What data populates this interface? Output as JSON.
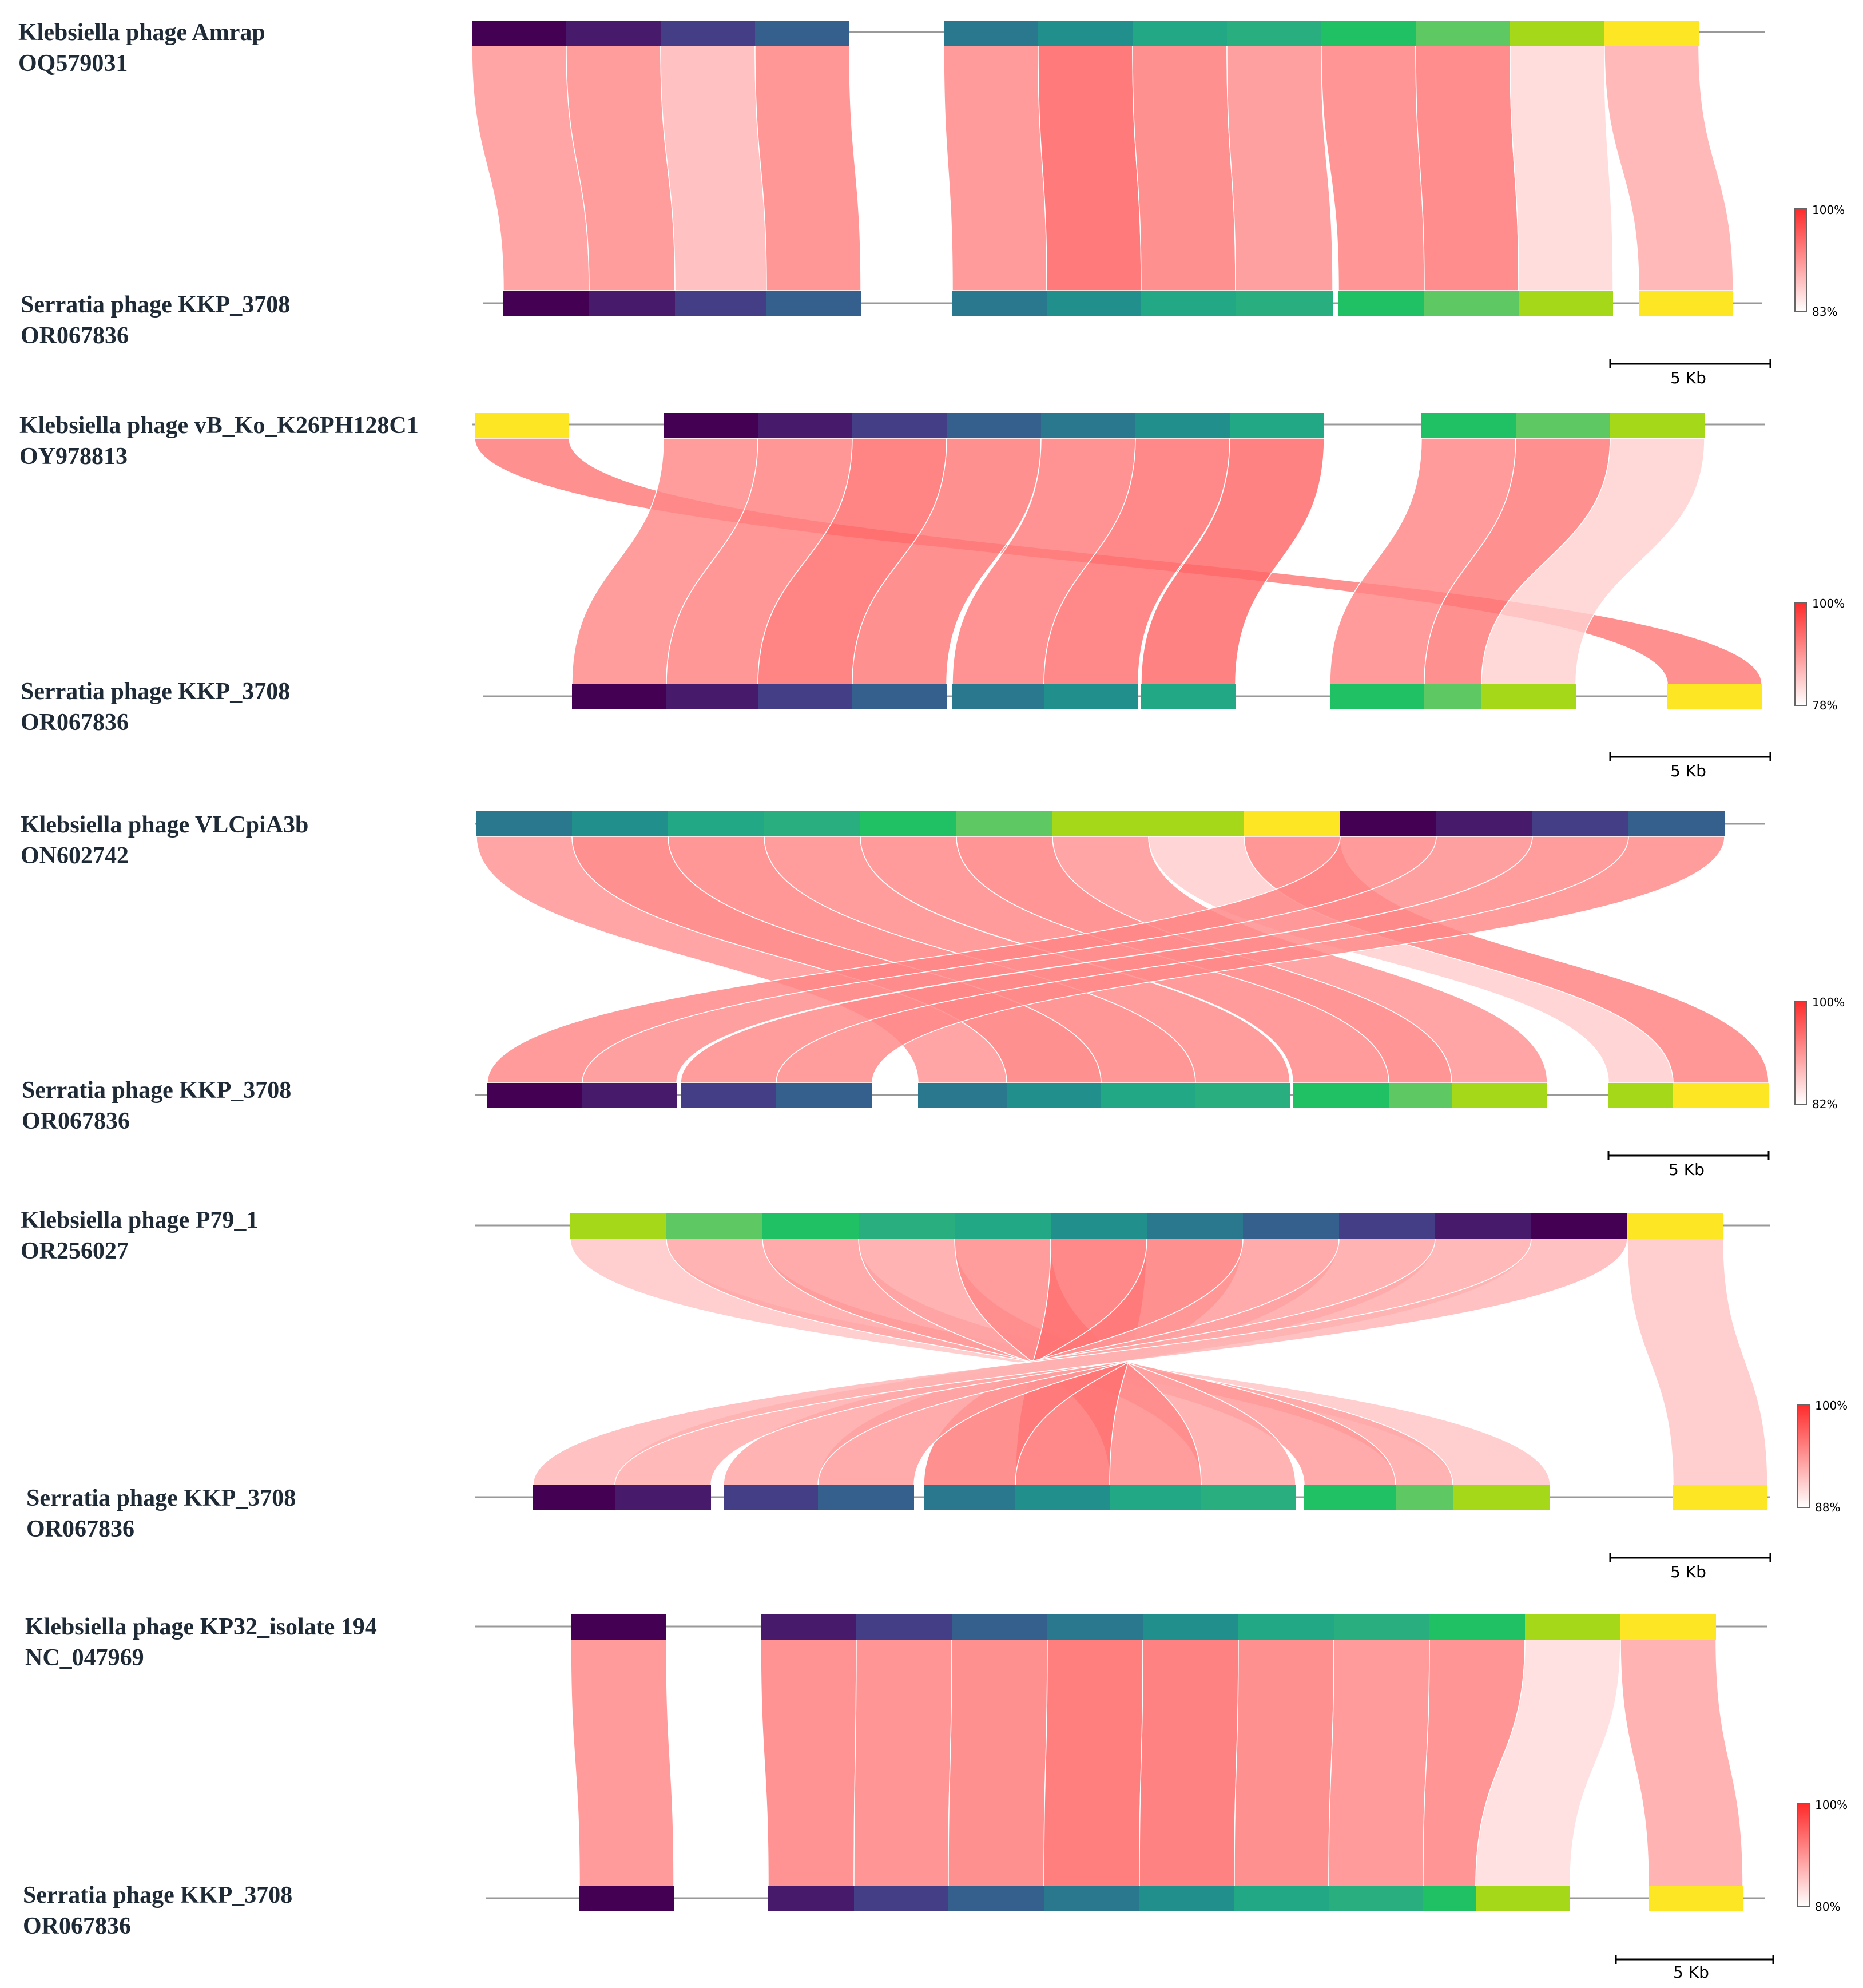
{
  "figure": {
    "palette": [
      "#440154",
      "#481a6c",
      "#433e85",
      "#355f8d",
      "#2a788e",
      "#21908d",
      "#22a884",
      "#29af7f",
      "#1fc164",
      "#5ec962",
      "#a6d81a",
      "#fde725"
    ],
    "identity_color": "#ff2a2a",
    "scale_bar_label": "5 Kb",
    "panels": [
      {
        "name": "panel-1",
        "top_genome": {
          "name": "Klebsiella phage Amrap",
          "accession": "OQ579031"
        },
        "bottom_genome": {
          "name": "Serratia phage KKP_3708",
          "accession": "OR067836"
        },
        "legend": {
          "max": "100%",
          "min": "83%"
        },
        "top_blocks": [
          0,
          1,
          2,
          3,
          4,
          5,
          6,
          7,
          8,
          9,
          10,
          11
        ],
        "bottom_blocks": [
          0,
          1,
          2,
          3,
          4,
          5,
          6,
          7,
          8,
          9,
          10,
          11
        ],
        "links_identity": [
          0.55,
          0.6,
          0.35,
          0.65,
          0.62,
          0.85,
          0.7,
          0.58,
          0.66,
          0.72,
          0.15,
          0.4
        ]
      },
      {
        "name": "panel-2",
        "top_genome": {
          "name": "Klebsiella phage vB_Ko_K26PH128C1",
          "accession": "OY978813"
        },
        "bottom_genome": {
          "name": "Serratia phage KKP_3708",
          "accession": "OR067836"
        },
        "legend": {
          "max": "100%",
          "min": "78%"
        },
        "top_blocks": [
          11,
          0,
          1,
          2,
          3,
          4,
          5,
          6,
          8,
          9,
          10
        ],
        "bottom_blocks": [
          0,
          1,
          2,
          3,
          4,
          5,
          6,
          8,
          9,
          10,
          11
        ],
        "links_identity": [
          0.7,
          0.6,
          0.65,
          0.78,
          0.7,
          0.68,
          0.75,
          0.8,
          0.62,
          0.7,
          0.18
        ]
      },
      {
        "name": "panel-3",
        "top_genome": {
          "name": "Klebsiella phage VLCpiA3b",
          "accession": "ON602742"
        },
        "bottom_genome": {
          "name": "Serratia phage KKP_3708",
          "accession": "OR067836"
        },
        "legend": {
          "max": "100%",
          "min": "82%"
        },
        "top_blocks": [
          4,
          5,
          6,
          7,
          8,
          9,
          10,
          10,
          11,
          0,
          1,
          2,
          3
        ],
        "bottom_blocks": [
          0,
          1,
          2,
          3,
          4,
          5,
          6,
          7,
          8,
          9,
          10,
          10,
          11
        ],
        "links_identity": [
          0.55,
          0.7,
          0.65,
          0.6,
          0.62,
          0.66,
          0.55,
          0.2,
          0.65,
          0.62,
          0.58,
          0.6,
          0.6
        ]
      },
      {
        "name": "panel-4",
        "top_genome": {
          "name": "Klebsiella phage P79_1",
          "accession": "OR256027"
        },
        "bottom_genome": {
          "name": "Serratia phage KKP_3708",
          "accession": "OR067836"
        },
        "legend": {
          "max": "100%",
          "min": "88%"
        },
        "top_blocks": [
          10,
          9,
          8,
          7,
          6,
          5,
          4,
          3,
          2,
          1,
          0,
          11
        ],
        "bottom_blocks": [
          0,
          1,
          2,
          3,
          4,
          5,
          6,
          7,
          8,
          9,
          10,
          11
        ],
        "links_identity": [
          0.25,
          0.45,
          0.5,
          0.45,
          0.6,
          0.75,
          0.7,
          0.5,
          0.45,
          0.4,
          0.35,
          0.25
        ]
      },
      {
        "name": "panel-5",
        "top_genome": {
          "name": "Klebsiella phage KP32_isolate 194",
          "accession": "NC_047969"
        },
        "bottom_genome": {
          "name": "Serratia phage KKP_3708",
          "accession": "OR067836"
        },
        "legend": {
          "max": "100%",
          "min": "80%"
        },
        "top_blocks": [
          0,
          1,
          2,
          3,
          4,
          5,
          6,
          7,
          8,
          10,
          11
        ],
        "bottom_blocks": [
          0,
          1,
          2,
          3,
          4,
          5,
          6,
          7,
          8,
          10,
          11
        ],
        "links_identity": [
          0.62,
          0.68,
          0.66,
          0.7,
          0.82,
          0.8,
          0.7,
          0.62,
          0.66,
          0.12,
          0.45
        ]
      }
    ]
  }
}
